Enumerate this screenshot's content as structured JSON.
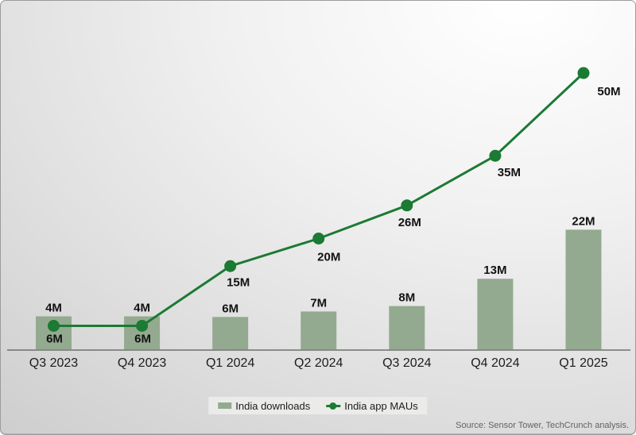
{
  "chart_data": {
    "type": "bar",
    "subtype": "bar-and-line combo, hidden value axes",
    "categories": [
      "Q3 2023",
      "Q4 2023",
      "Q1 2024",
      "Q2 2024",
      "Q3 2024",
      "Q4 2024",
      "Q1 2025"
    ],
    "series": [
      {
        "name": "India downloads",
        "type": "bar",
        "color": "#94aa90",
        "values": [
          4,
          4,
          6,
          7,
          8,
          13,
          22
        ],
        "labels": [
          "4M",
          "4M",
          "6M",
          "7M",
          "8M",
          "13M",
          "22M"
        ]
      },
      {
        "name": "India app MAUs",
        "type": "line",
        "color": "#1b7a33",
        "values": [
          6,
          6,
          15,
          20,
          26,
          35,
          50
        ],
        "labels": [
          "6M",
          "6M",
          "15M",
          "20M",
          "26M",
          "35M",
          "50M"
        ]
      }
    ],
    "unit": "millions",
    "title": "",
    "xlabel": "",
    "ylabel": "",
    "axes": {
      "y_axis_hidden": true,
      "x_baseline_shown": true
    },
    "grid": "off",
    "legend_position": "bottom-center"
  },
  "source_note": "Source: Sensor Tower, TechCrunch analysis.",
  "colors": {
    "bar": "#94aa90",
    "line": "#1b7a33",
    "value_label_text": "#121212",
    "axis_line": "#6f6f6f",
    "source_text": "#636363",
    "legend_background": "#ebebe9",
    "background_light": "#ffffff",
    "background_dark": "#cbcbcb"
  }
}
